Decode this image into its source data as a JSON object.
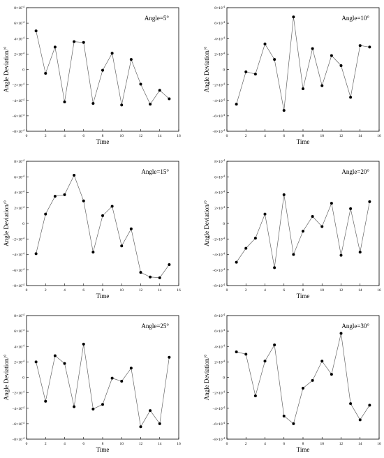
{
  "chart_data": [
    {
      "type": "line",
      "annotation": "Angle=5°",
      "xlabel": "Time",
      "ylabel": "Angle Deviation/°",
      "xlim": [
        0,
        16
      ],
      "ylim": [
        -0.0008,
        0.0008
      ],
      "x_ticks": [
        0,
        2,
        4,
        6,
        8,
        10,
        12,
        14,
        16
      ],
      "y_ticks": [
        {
          "value": 0.0008,
          "base": "8",
          "exp": "-4"
        },
        {
          "value": 0.0006,
          "base": "6",
          "exp": "-4"
        },
        {
          "value": 0.0004,
          "base": "4",
          "exp": "-4"
        },
        {
          "value": 0.0002,
          "base": "2",
          "exp": "-4"
        },
        {
          "value": 0,
          "base": "0",
          "exp": ""
        },
        {
          "value": -0.0002,
          "base": "−2",
          "exp": "-4"
        },
        {
          "value": -0.0004,
          "base": "−4",
          "exp": "-4"
        },
        {
          "value": -0.0006,
          "base": "−6",
          "exp": "-4"
        },
        {
          "value": -0.0008,
          "base": "−8",
          "exp": "-4"
        }
      ],
      "x": [
        1,
        2,
        3,
        4,
        5,
        6,
        7,
        8,
        9,
        10,
        11,
        12,
        13,
        14,
        15
      ],
      "values": [
        0.0005,
        -5e-05,
        0.00029,
        -0.00042,
        0.00036,
        0.00035,
        -0.00044,
        -1e-05,
        0.00021,
        -0.00046,
        0.00013,
        -0.00019,
        -0.00045,
        -0.00027,
        -0.00038
      ],
      "grid": false,
      "marker": "circle"
    },
    {
      "type": "line",
      "annotation": "Angle=10°",
      "xlabel": "Time",
      "ylabel": "Angle Deviation/°",
      "xlim": [
        0,
        16
      ],
      "ylim": [
        -0.0008,
        0.0008
      ],
      "x_ticks": [
        0,
        2,
        4,
        6,
        8,
        10,
        12,
        14,
        16
      ],
      "y_ticks": [
        {
          "value": 0.0008,
          "base": "8",
          "exp": "-4"
        },
        {
          "value": 0.0006,
          "base": "6",
          "exp": "-4"
        },
        {
          "value": 0.0004,
          "base": "4",
          "exp": "-4"
        },
        {
          "value": 0.0002,
          "base": "2",
          "exp": "-4"
        },
        {
          "value": 0,
          "base": "0",
          "exp": ""
        },
        {
          "value": -0.0002,
          "base": "−2",
          "exp": "-4"
        },
        {
          "value": -0.0004,
          "base": "−4",
          "exp": "-4"
        },
        {
          "value": -0.0006,
          "base": "−6",
          "exp": "-4"
        },
        {
          "value": -0.0008,
          "base": "−8",
          "exp": "-4"
        }
      ],
      "x": [
        1,
        2,
        3,
        4,
        5,
        6,
        7,
        8,
        9,
        10,
        11,
        12,
        13,
        14,
        15
      ],
      "values": [
        -0.00045,
        -3e-05,
        -6e-05,
        0.00033,
        0.00013,
        -0.00053,
        0.00068,
        -0.00025,
        0.00027,
        -0.00021,
        0.00018,
        5e-05,
        -0.00036,
        0.00031,
        0.00029
      ],
      "grid": false,
      "marker": "circle"
    },
    {
      "type": "line",
      "annotation": "Angle=15°",
      "xlabel": "Time",
      "ylabel": "Angle Deviation/°",
      "xlim": [
        0,
        16
      ],
      "ylim": [
        -0.0008,
        0.0008
      ],
      "x_ticks": [
        0,
        2,
        4,
        6,
        8,
        10,
        12,
        14,
        16
      ],
      "y_ticks": [
        {
          "value": 0.0008,
          "base": "8",
          "exp": "-4"
        },
        {
          "value": 0.0006,
          "base": "6",
          "exp": "-4"
        },
        {
          "value": 0.0004,
          "base": "4",
          "exp": "-4"
        },
        {
          "value": 0.0002,
          "base": "2",
          "exp": "-4"
        },
        {
          "value": 0,
          "base": "0",
          "exp": ""
        },
        {
          "value": -0.0002,
          "base": "−2",
          "exp": "-4"
        },
        {
          "value": -0.0004,
          "base": "−4",
          "exp": "-4"
        },
        {
          "value": -0.0006,
          "base": "−6",
          "exp": "-4"
        },
        {
          "value": -0.0008,
          "base": "−8",
          "exp": "-4"
        }
      ],
      "x": [
        1,
        2,
        3,
        4,
        5,
        6,
        7,
        8,
        9,
        10,
        11,
        12,
        13,
        14,
        15
      ],
      "values": [
        -0.00039,
        0.00012,
        0.00035,
        0.00037,
        0.00062,
        0.00029,
        -0.00037,
        0.0001,
        0.00022,
        -0.00029,
        -7e-05,
        -0.00063,
        -0.00069,
        -0.0007,
        -0.00053
      ],
      "grid": false,
      "marker": "circle"
    },
    {
      "type": "line",
      "annotation": "Angle=20°",
      "xlabel": "Time",
      "ylabel": "Angle Deviation/°",
      "xlim": [
        0,
        16
      ],
      "ylim": [
        -0.0008,
        0.0008
      ],
      "x_ticks": [
        0,
        2,
        4,
        6,
        8,
        10,
        12,
        14,
        16
      ],
      "y_ticks": [
        {
          "value": 0.0008,
          "base": "8",
          "exp": "-4"
        },
        {
          "value": 0.0006,
          "base": "6",
          "exp": "-4"
        },
        {
          "value": 0.0004,
          "base": "4",
          "exp": "-4"
        },
        {
          "value": 0.0002,
          "base": "2",
          "exp": "-4"
        },
        {
          "value": 0,
          "base": "0",
          "exp": ""
        },
        {
          "value": -0.0002,
          "base": "−2",
          "exp": "-4"
        },
        {
          "value": -0.0004,
          "base": "−4",
          "exp": "-4"
        },
        {
          "value": -0.0006,
          "base": "−6",
          "exp": "-4"
        },
        {
          "value": -0.0008,
          "base": "−8",
          "exp": "-4"
        }
      ],
      "x": [
        1,
        2,
        3,
        4,
        5,
        6,
        7,
        8,
        9,
        10,
        11,
        12,
        13,
        14,
        15
      ],
      "values": [
        -0.0005,
        -0.00032,
        -0.00019,
        0.00012,
        -0.00057,
        0.00037,
        -0.0004,
        -0.0001,
        9e-05,
        -4e-05,
        0.00026,
        -0.00041,
        0.00019,
        -0.00037,
        0.00028
      ],
      "grid": false,
      "marker": "circle"
    },
    {
      "type": "line",
      "annotation": "Angle=25°",
      "xlabel": "Time",
      "ylabel": "Angle Deviation/°",
      "xlim": [
        0,
        16
      ],
      "ylim": [
        -0.0008,
        0.0008
      ],
      "x_ticks": [
        0,
        2,
        4,
        6,
        8,
        10,
        12,
        14,
        16
      ],
      "y_ticks": [
        {
          "value": 0.0008,
          "base": "8",
          "exp": "-4"
        },
        {
          "value": 0.0006,
          "base": "6",
          "exp": "-4"
        },
        {
          "value": 0.0004,
          "base": "4",
          "exp": "-4"
        },
        {
          "value": 0.0002,
          "base": "2",
          "exp": "-4"
        },
        {
          "value": 0,
          "base": "0",
          "exp": ""
        },
        {
          "value": -0.0002,
          "base": "−2",
          "exp": "-4"
        },
        {
          "value": -0.0004,
          "base": "−4",
          "exp": "-4"
        },
        {
          "value": -0.0006,
          "base": "−6",
          "exp": "-4"
        },
        {
          "value": -0.0008,
          "base": "−8",
          "exp": "-4"
        }
      ],
      "x": [
        1,
        2,
        3,
        4,
        5,
        6,
        7,
        8,
        9,
        10,
        11,
        12,
        13,
        14,
        15
      ],
      "values": [
        0.0002,
        -0.00031,
        0.00028,
        0.00018,
        -0.00038,
        0.00043,
        -0.00041,
        -0.00035,
        -1e-05,
        -5e-05,
        0.00012,
        -0.00064,
        -0.00043,
        -0.0006,
        0.00026
      ],
      "grid": false,
      "marker": "circle"
    },
    {
      "type": "line",
      "annotation": "Angle=30°",
      "xlabel": "Time",
      "ylabel": "Angle Deviation/°",
      "xlim": [
        0,
        16
      ],
      "ylim": [
        -0.0008,
        0.0008
      ],
      "x_ticks": [
        0,
        2,
        4,
        6,
        8,
        10,
        12,
        14,
        16
      ],
      "y_ticks": [
        {
          "value": 0.0008,
          "base": "8",
          "exp": "-4"
        },
        {
          "value": 0.0006,
          "base": "6",
          "exp": "-4"
        },
        {
          "value": 0.0004,
          "base": "4",
          "exp": "-4"
        },
        {
          "value": 0.0002,
          "base": "2",
          "exp": "-4"
        },
        {
          "value": 0,
          "base": "0",
          "exp": ""
        },
        {
          "value": -0.0002,
          "base": "−2",
          "exp": "-4"
        },
        {
          "value": -0.0004,
          "base": "−4",
          "exp": "-4"
        },
        {
          "value": -0.0006,
          "base": "−6",
          "exp": "-4"
        },
        {
          "value": -0.0008,
          "base": "−8",
          "exp": "-4"
        }
      ],
      "x": [
        1,
        2,
        3,
        4,
        5,
        6,
        7,
        8,
        9,
        10,
        11,
        12,
        13,
        14,
        15
      ],
      "values": [
        0.00033,
        0.0003,
        -0.00024,
        0.00021,
        0.00042,
        -0.0005,
        -0.0006,
        -0.00014,
        -4e-05,
        0.00021,
        4e-05,
        0.00057,
        -0.00034,
        -0.00055,
        -0.00036
      ],
      "grid": false,
      "marker": "circle"
    }
  ]
}
